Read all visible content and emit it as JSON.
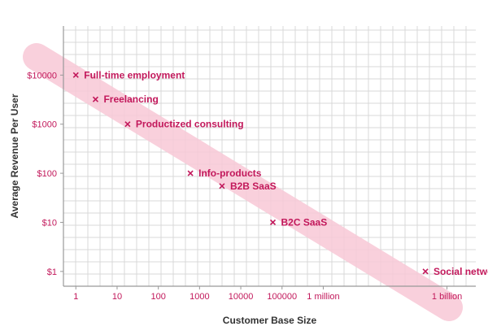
{
  "chart_data": {
    "type": "scatter",
    "title": "",
    "xlabel": "Customer Base Size",
    "ylabel": "Average Revenue Per User",
    "x_scale": "log",
    "y_scale": "log",
    "xlim": [
      0.5,
      5000000000
    ],
    "ylim": [
      0.5,
      100000
    ],
    "x_ticks": [
      {
        "value": 1,
        "label": "1"
      },
      {
        "value": 10,
        "label": "10"
      },
      {
        "value": 100,
        "label": "100"
      },
      {
        "value": 1000,
        "label": "1000"
      },
      {
        "value": 10000,
        "label": "10000"
      },
      {
        "value": 100000,
        "label": "100000"
      },
      {
        "value": 1000000,
        "label": "1 million"
      },
      {
        "value": 1000000000,
        "label": "1 billion"
      }
    ],
    "y_ticks": [
      {
        "value": 1,
        "label": "$1"
      },
      {
        "value": 10,
        "label": "$10"
      },
      {
        "value": 100,
        "label": "$100"
      },
      {
        "value": 1000,
        "label": "$1000"
      },
      {
        "value": 10000,
        "label": "$10000"
      }
    ],
    "grid": true,
    "points": [
      {
        "label": "Full-time employment",
        "x": 1,
        "y": 10000
      },
      {
        "label": "Freelancing",
        "x": 3,
        "y": 3200
      },
      {
        "label": "Productized consulting",
        "x": 18,
        "y": 1000
      },
      {
        "label": "Info-products",
        "x": 600,
        "y": 100
      },
      {
        "label": "B2B SaaS",
        "x": 3500,
        "y": 55
      },
      {
        "label": "B2C SaaS",
        "x": 60000,
        "y": 10
      },
      {
        "label": "Social networks",
        "x": 300000000,
        "y": 1
      }
    ],
    "trend_band": {
      "color": "#f8c8d6"
    },
    "colors": {
      "accent": "#c2185b",
      "grid": "#d9d9d9",
      "axis": "#999999"
    }
  }
}
